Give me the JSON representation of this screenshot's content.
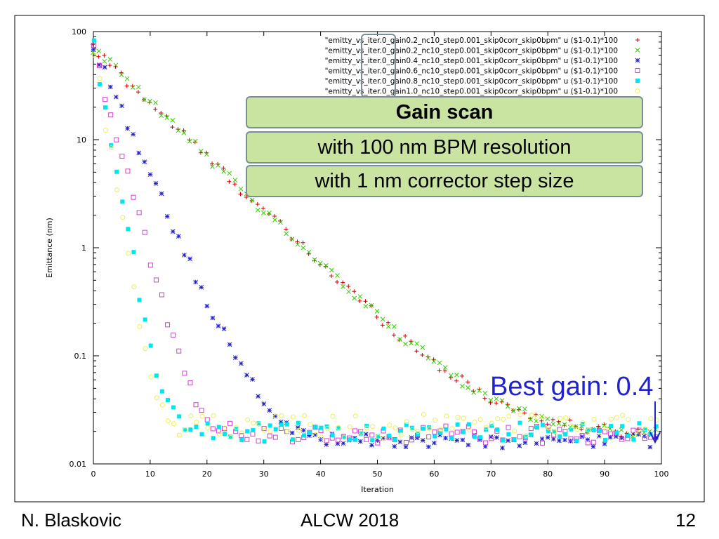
{
  "chart_data": {
    "type": "scatter",
    "xlabel": "Iteration",
    "ylabel": "Emittance (nm)",
    "xlim": [
      0,
      100
    ],
    "ylim": [
      0.01,
      100
    ],
    "yscale": "log",
    "grid": false,
    "legend_position": "top-right",
    "x_ticks": [
      "0",
      "10",
      "20",
      "30",
      "40",
      "50",
      "60",
      "70",
      "80",
      "90",
      "100"
    ],
    "y_ticks": [
      "0.01",
      "0.1",
      "1",
      "10",
      "100"
    ],
    "series": [
      {
        "name": "\"emitty_vs_iter.0_gain0.2_nc10_step0.001_skip0corr_skip0bpm\" u ($1-0.1)*100",
        "color": "#cc0000",
        "marker": "plus",
        "params": {
          "start": 70,
          "decay": 0.115,
          "floor": 0.0185,
          "noise": 0.12
        }
      },
      {
        "name": "\"emitty_vs_iter.0_gain0.2_nc10_step0.001_skip0corr_skip0bpm\" u ($1-0.1)*100",
        "color": "#33cc00",
        "marker": "cross",
        "params": {
          "start": 70,
          "decay": 0.115,
          "floor": 0.0185,
          "noise": 0.12
        }
      },
      {
        "name": "\"emitty_vs_iter.0_gain0.4_nc10_step0.001_skip0corr_skip0bpm\" u ($1-0.1)*100",
        "color": "#2222cc",
        "marker": "star",
        "params": {
          "start": 70,
          "decay": 0.27,
          "floor": 0.0165,
          "noise": 0.15
        }
      },
      {
        "name": "\"emitty_vs_iter.0_gain0.6_nc10_step0.001_skip0corr_skip0bpm\" u ($1-0.1)*100",
        "color": "#cc44cc",
        "marker": "square-open",
        "params": {
          "start": 70,
          "decay": 0.45,
          "floor": 0.019,
          "noise": 0.18
        }
      },
      {
        "name": "\"emitty_vs_iter.0_gain0.8_nc10_step0.001_skip0corr_skip0bpm\" u ($1-0.1)*100",
        "color": "#00e5ee",
        "marker": "square-filled",
        "params": {
          "start": 70,
          "decay": 0.65,
          "floor": 0.02,
          "noise": 0.2
        }
      },
      {
        "name": "\"emitty_vs_iter.0_gain1.0_nc10_step0.001_skip0corr_skip0bpm\" u ($1-0.1)*100",
        "color": "#eeee55",
        "marker": "circle-open",
        "params": {
          "start": 70,
          "decay": 0.75,
          "floor": 0.023,
          "noise": 0.25
        }
      }
    ]
  },
  "callouts": {
    "title": "Gain scan",
    "line1": "with 100 nm BPM resolution",
    "line2": "with 1 nm corrector step size"
  },
  "annotation": {
    "best_gain": "Best gain: 0.4",
    "color": "#2222cc"
  },
  "footer": {
    "author": "N. Blaskovic",
    "event": "ALCW 2018",
    "page": "12"
  }
}
